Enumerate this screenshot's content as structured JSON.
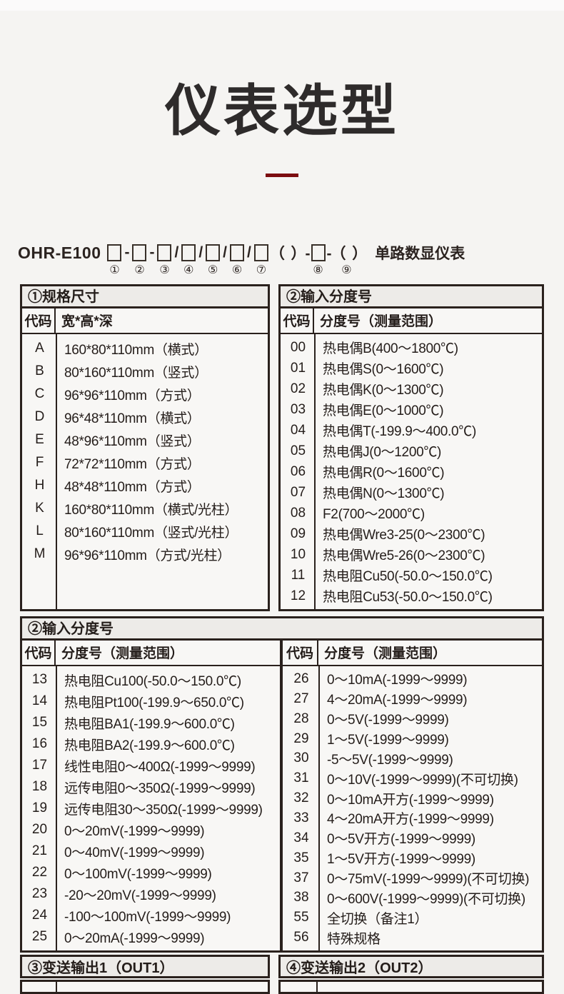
{
  "page": {
    "title": "仪表选型",
    "accent_color": "#7c0d10",
    "product_family": "OHR-E100"
  },
  "model": {
    "prefix": "OHR-E100",
    "dash": "-",
    "slash": "/",
    "paren_dash": "（  ）-",
    "dash_paren": "-（  ）",
    "suffix": "单路数显仪表",
    "nums": [
      "①",
      "②",
      "③",
      "④",
      "⑤",
      "⑥",
      "⑦",
      "⑧",
      "⑨"
    ]
  },
  "section1": {
    "left": {
      "header": "①规格尺寸",
      "col_code": "代码",
      "col_desc": "宽*高*深",
      "rows": [
        [
          "A",
          "160*80*110mm（横式）"
        ],
        [
          "B",
          "80*160*110mm（竖式）"
        ],
        [
          "C",
          "96*96*110mm（方式）"
        ],
        [
          "D",
          "96*48*110mm（横式）"
        ],
        [
          "E",
          "48*96*110mm（竖式）"
        ],
        [
          "F",
          "72*72*110mm（方式）"
        ],
        [
          "H",
          "48*48*110mm（方式）"
        ],
        [
          "K",
          "160*80*110mm（横式/光柱）"
        ],
        [
          "L",
          "80*160*110mm（竖式/光柱）"
        ],
        [
          "M",
          "96*96*110mm（方式/光柱）"
        ]
      ]
    },
    "right": {
      "header": "②输入分度号",
      "col_code": "代码",
      "col_desc": "分度号（测量范围）",
      "rows": [
        [
          "00",
          "热电偶B(400～1800℃)"
        ],
        [
          "01",
          "热电偶S(0～1600℃)"
        ],
        [
          "02",
          "热电偶K(0～1300℃)"
        ],
        [
          "03",
          "热电偶E(0～1000℃)"
        ],
        [
          "04",
          "热电偶T(-199.9～400.0℃)"
        ],
        [
          "05",
          "热电偶J(0～1200℃)"
        ],
        [
          "06",
          "热电偶R(0～1600℃)"
        ],
        [
          "07",
          "热电偶N(0～1300℃)"
        ],
        [
          "08",
          "F2(700～2000℃)"
        ],
        [
          "09",
          "热电偶Wre3-25(0～2300℃)"
        ],
        [
          "10",
          "热电偶Wre5-26(0～2300℃)"
        ],
        [
          "11",
          "热电阻Cu50(-50.0～150.0℃)"
        ],
        [
          "12",
          "热电阻Cu53(-50.0～150.0℃)"
        ]
      ]
    }
  },
  "section2": {
    "header": "②输入分度号",
    "col_code": "代码",
    "col_desc": "分度号（测量范围）",
    "left_rows": [
      [
        "13",
        "热电阻Cu100(-50.0～150.0℃)"
      ],
      [
        "14",
        "热电阻Pt100(-199.9～650.0℃)"
      ],
      [
        "15",
        "热电阻BA1(-199.9～600.0℃)"
      ],
      [
        "16",
        "热电阻BA2(-199.9～600.0℃)"
      ],
      [
        "17",
        "线性电阻0～400Ω(-1999～9999)"
      ],
      [
        "18",
        "远传电阻0～350Ω(-1999～9999)"
      ],
      [
        "19",
        "远传电阻30～350Ω(-1999～9999)"
      ],
      [
        "20",
        "0～20mV(-1999～9999)"
      ],
      [
        "21",
        "0～40mV(-1999～9999)"
      ],
      [
        "22",
        "0～100mV(-1999～9999)"
      ],
      [
        "23",
        "-20～20mV(-1999～9999)"
      ],
      [
        "24",
        "-100～100mV(-1999～9999)"
      ],
      [
        "25",
        "0～20mA(-1999～9999)"
      ]
    ],
    "right_rows": [
      [
        "26",
        "0～10mA(-1999～9999)"
      ],
      [
        "27",
        "4～20mA(-1999～9999)"
      ],
      [
        "28",
        "0～5V(-1999～9999)"
      ],
      [
        "29",
        "1～5V(-1999～9999)"
      ],
      [
        "30",
        "-5～5V(-1999～9999)"
      ],
      [
        "31",
        "0～10V(-1999～9999)(不可切换)"
      ],
      [
        "32",
        "0～10mA开方(-1999～9999)"
      ],
      [
        "33",
        "4～20mA开方(-1999～9999)"
      ],
      [
        "34",
        "0～5V开方(-1999～9999)"
      ],
      [
        "35",
        "1～5V开方(-1999～9999)"
      ],
      [
        "37",
        "0～75mV(-1999～9999)(不可切换)"
      ],
      [
        "38",
        "0～600V(-1999～9999)(不可切换)"
      ],
      [
        "55",
        "全切换（备注1）"
      ],
      [
        "56",
        "特殊规格"
      ]
    ]
  },
  "section3": {
    "left_header": "③变送输出1（OUT1）",
    "right_header": "④变送输出2（OUT2）"
  }
}
